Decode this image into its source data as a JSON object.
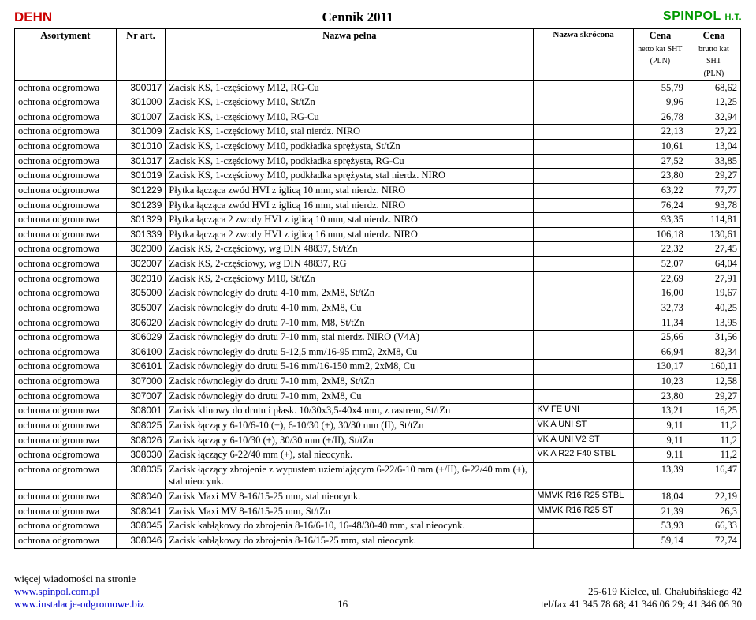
{
  "header": {
    "dehn": "DEHN",
    "title": "Cennik 2011",
    "spinpol": "SPINPOL",
    "spinpol_ht": "H.T."
  },
  "table": {
    "columns": {
      "asortyment": "Asortyment",
      "nr_art": "Nr art.",
      "nazwa_pelna": "Nazwa pełna",
      "nazwa_skrocona": "Nazwa skrócona",
      "cena_netto_l1": "Cena",
      "cena_netto_l2": "netto kat SHT",
      "cena_netto_l3": "(PLN)",
      "cena_brutto_l1": "Cena",
      "cena_brutto_l2": "brutto kat SHT",
      "cena_brutto_l3": "(PLN)"
    },
    "rows": [
      {
        "a": "ochrona odgromowa",
        "nr": "300017",
        "np": "Zacisk KS, 1-częściowy M12, RG-Cu",
        "ns": "",
        "net": "55,79",
        "brt": "68,62"
      },
      {
        "a": "ochrona odgromowa",
        "nr": "301000",
        "np": "Zacisk KS, 1-częściowy M10, St/tZn",
        "ns": "",
        "net": "9,96",
        "brt": "12,25"
      },
      {
        "a": "ochrona odgromowa",
        "nr": "301007",
        "np": "Zacisk KS, 1-częściowy M10, RG-Cu",
        "ns": "",
        "net": "26,78",
        "brt": "32,94"
      },
      {
        "a": "ochrona odgromowa",
        "nr": "301009",
        "np": "Zacisk KS, 1-częściowy M10, stal nierdz. NIRO",
        "ns": "",
        "net": "22,13",
        "brt": "27,22"
      },
      {
        "a": "ochrona odgromowa",
        "nr": "301010",
        "np": "Zacisk KS, 1-częściowy M10, podkładka sprężysta, St/tZn",
        "ns": "",
        "net": "10,61",
        "brt": "13,04"
      },
      {
        "a": "ochrona odgromowa",
        "nr": "301017",
        "np": "Zacisk KS, 1-częściowy M10, podkładka sprężysta, RG-Cu",
        "ns": "",
        "net": "27,52",
        "brt": "33,85"
      },
      {
        "a": "ochrona odgromowa",
        "nr": "301019",
        "np": "Zacisk KS, 1-częściowy M10, podkładka sprężysta, stal nierdz. NIRO",
        "ns": "",
        "net": "23,80",
        "brt": "29,27"
      },
      {
        "a": "ochrona odgromowa",
        "nr": "301229",
        "np": "Płytka łącząca zwód HVI z iglicą 10 mm, stal nierdz. NIRO",
        "ns": "",
        "net": "63,22",
        "brt": "77,77"
      },
      {
        "a": "ochrona odgromowa",
        "nr": "301239",
        "np": "Płytka łącząca zwód HVI z iglicą 16 mm, stal nierdz. NIRO",
        "ns": "",
        "net": "76,24",
        "brt": "93,78"
      },
      {
        "a": "ochrona odgromowa",
        "nr": "301329",
        "np": "Płytka łącząca 2 zwody HVI z iglicą 10 mm, stal nierdz. NIRO",
        "ns": "",
        "net": "93,35",
        "brt": "114,81"
      },
      {
        "a": "ochrona odgromowa",
        "nr": "301339",
        "np": "Płytka łącząca 2 zwody HVI z iglicą 16 mm, stal nierdz. NIRO",
        "ns": "",
        "net": "106,18",
        "brt": "130,61"
      },
      {
        "a": "ochrona odgromowa",
        "nr": "302000",
        "np": "Zacisk KS, 2-częściowy, wg DIN 48837, St/tZn",
        "ns": "",
        "net": "22,32",
        "brt": "27,45"
      },
      {
        "a": "ochrona odgromowa",
        "nr": "302007",
        "np": "Zacisk KS, 2-częściowy, wg DIN 48837, RG",
        "ns": "",
        "net": "52,07",
        "brt": "64,04"
      },
      {
        "a": "ochrona odgromowa",
        "nr": "302010",
        "np": "Zacisk KS, 2-częściowy M10, St/tZn",
        "ns": "",
        "net": "22,69",
        "brt": "27,91"
      },
      {
        "a": "ochrona odgromowa",
        "nr": "305000",
        "np": "Zacisk równoległy do drutu 4-10 mm, 2xM8, St/tZn",
        "ns": "",
        "net": "16,00",
        "brt": "19,67"
      },
      {
        "a": "ochrona odgromowa",
        "nr": "305007",
        "np": "Zacisk równoległy do drutu 4-10 mm, 2xM8, Cu",
        "ns": "",
        "net": "32,73",
        "brt": "40,25"
      },
      {
        "a": "ochrona odgromowa",
        "nr": "306020",
        "np": "Zacisk równoległy do drutu 7-10 mm, M8, St/tZn",
        "ns": "",
        "net": "11,34",
        "brt": "13,95"
      },
      {
        "a": "ochrona odgromowa",
        "nr": "306029",
        "np": "Zacisk równoległy do drutu 7-10 mm, stal nierdz. NIRO (V4A)",
        "ns": "",
        "net": "25,66",
        "brt": "31,56"
      },
      {
        "a": "ochrona odgromowa",
        "nr": "306100",
        "np": "Zacisk równoległy do drutu 5-12,5 mm/16-95 mm2, 2xM8, Cu",
        "ns": "",
        "net": "66,94",
        "brt": "82,34"
      },
      {
        "a": "ochrona odgromowa",
        "nr": "306101",
        "np": "Zacisk równoległy do drutu 5-16 mm/16-150 mm2, 2xM8, Cu",
        "ns": "",
        "net": "130,17",
        "brt": "160,11"
      },
      {
        "a": "ochrona odgromowa",
        "nr": "307000",
        "np": "Zacisk równoległy do drutu 7-10 mm, 2xM8, St/tZn",
        "ns": "",
        "net": "10,23",
        "brt": "12,58"
      },
      {
        "a": "ochrona odgromowa",
        "nr": "307007",
        "np": "Zacisk równoległy do drutu 7-10 mm, 2xM8, Cu",
        "ns": "",
        "net": "23,80",
        "brt": "29,27"
      },
      {
        "a": "ochrona odgromowa",
        "nr": "308001",
        "np": "Zacisk klinowy do drutu i płask. 10/30x3,5-40x4 mm, z rastrem, St/tZn",
        "ns": "KV FE UNI",
        "net": "13,21",
        "brt": "16,25"
      },
      {
        "a": "ochrona odgromowa",
        "nr": "308025",
        "np": "Zacisk łączący 6-10/6-10 (+), 6-10/30 (+), 30/30 mm (II), St/tZn",
        "ns": "VK A UNI ST",
        "net": "9,11",
        "brt": "11,2"
      },
      {
        "a": "ochrona odgromowa",
        "nr": "308026",
        "np": "Zacisk łączący 6-10/30 (+), 30/30 mm (+/II), St/tZn",
        "ns": "VK A UNI V2 ST",
        "net": "9,11",
        "brt": "11,2"
      },
      {
        "a": "ochrona odgromowa",
        "nr": "308030",
        "np": "Zacisk łączący 6-22/40 mm (+), stal nieocynk.",
        "ns": "VK A R22 F40 STBL",
        "net": "9,11",
        "brt": "11,2"
      },
      {
        "a": "ochrona odgromowa",
        "nr": "308035",
        "np": "Zacisk łączący zbrojenie z wypustem uziemiającym 6-22/6-10 mm (+/II), 6-22/40 mm (+), stal nieocynk.",
        "ns": "",
        "net": "13,39",
        "brt": "16,47"
      },
      {
        "a": "ochrona odgromowa",
        "nr": "308040",
        "np": "Zacisk Maxi MV 8-16/15-25 mm, stal nieocynk.",
        "ns": "MMVK R16 R25 STBL",
        "net": "18,04",
        "brt": "22,19"
      },
      {
        "a": "ochrona odgromowa",
        "nr": "308041",
        "np": "Zacisk Maxi MV 8-16/15-25 mm, St/tZn",
        "ns": "MMVK R16 R25 ST",
        "net": "21,39",
        "brt": "26,3"
      },
      {
        "a": "ochrona odgromowa",
        "nr": "308045",
        "np": "Zacisk kabłąkowy do zbrojenia 8-16/6-10, 16-48/30-40 mm, stal nieocynk.",
        "ns": "",
        "net": "53,93",
        "brt": "66,33"
      },
      {
        "a": "ochrona odgromowa",
        "nr": "308046",
        "np": "Zacisk kabłąkowy do zbrojenia 8-16/15-25 mm, stal nieocynk.",
        "ns": "",
        "net": "59,14",
        "brt": "72,74"
      }
    ]
  },
  "footer": {
    "left1": "więcej wiadomości na stronie",
    "left2": "www.spinpol.com.pl",
    "left3": "www.instalacje-odgromowe.biz",
    "page": "16",
    "right1": "25-619 Kielce,  ul. Chałubińskiego 42",
    "right2": "tel/fax  41 345 78 68; 41 346 06 29; 41 346 06 30"
  }
}
